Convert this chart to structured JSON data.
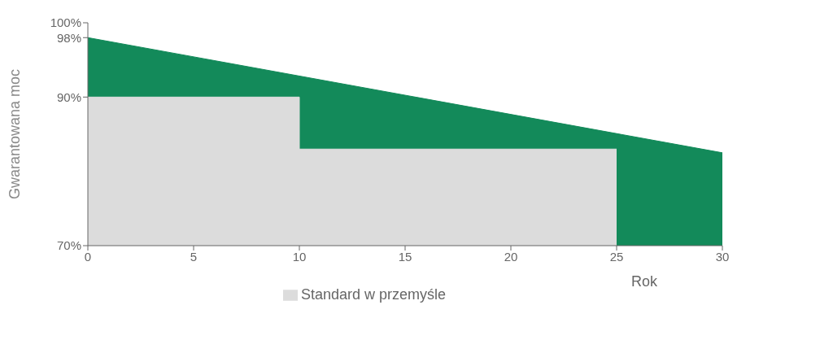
{
  "chart_data": {
    "type": "area",
    "xlabel": "Rok",
    "ylabel": "Gwarantowana moc",
    "series": [
      {
        "color": "#138a5a",
        "x": [
          0,
          30
        ],
        "values": [
          98,
          82.5
        ]
      },
      {
        "name": "Standard w przemyśle",
        "color": "#dcdcdc",
        "x": [
          0,
          10,
          10,
          25
        ],
        "values": [
          90,
          90,
          83,
          83
        ]
      }
    ],
    "xlim": [
      0,
      30
    ],
    "xticks": [
      0,
      5,
      10,
      15,
      20,
      25,
      30
    ],
    "ylim": [
      70,
      100
    ],
    "yticks": [
      {
        "value": 70,
        "label": "70%"
      },
      {
        "value": 90,
        "label": "90%"
      },
      {
        "value": 98,
        "label": "98%"
      },
      {
        "value": 100,
        "label": "100%"
      }
    ],
    "grid": false,
    "legend": "bottom"
  }
}
